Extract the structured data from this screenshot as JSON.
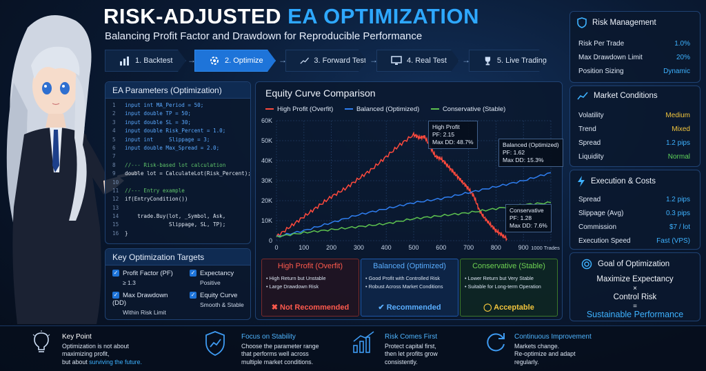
{
  "header": {
    "title_part1": "RISK-ADJUSTED",
    "title_part2": "EA OPTIMIZATION",
    "subtitle": "Balancing Profit Factor and Drawdown for Reproducible Performance"
  },
  "steps": [
    {
      "label": "1. Backtest",
      "icon": "bar-chart-icon"
    },
    {
      "label": "2. Optimize",
      "icon": "gear-icon"
    },
    {
      "label": "3. Forward Test",
      "icon": "trend-line-icon"
    },
    {
      "label": "4. Real Test",
      "icon": "monitor-icon"
    },
    {
      "label": "5. Live Trading",
      "icon": "trophy-icon"
    }
  ],
  "params": {
    "title": "EA Parameters (Optimization)",
    "lines": [
      {
        "n": "1",
        "t": "input int MA_Period = 50;",
        "c": "kw"
      },
      {
        "n": "2",
        "t": "input double TP = 50;",
        "c": "kw"
      },
      {
        "n": "3",
        "t": "input double SL = 30;",
        "c": "kw"
      },
      {
        "n": "4",
        "t": "input double Risk_Percent = 1.0;",
        "c": "kw"
      },
      {
        "n": "5",
        "t": "input int     Slippage = 3;",
        "c": "kw"
      },
      {
        "n": "6",
        "t": "input double Max_Spread = 2.0;",
        "c": "kw"
      },
      {
        "n": "7",
        "t": "",
        "c": "tx"
      },
      {
        "n": "8",
        "t": "//--- Risk-based lot calculation",
        "c": "cm"
      },
      {
        "n": "9",
        "t": "double lot = CalculateLot(Risk_Percent);",
        "c": "tx"
      },
      {
        "n": "10",
        "t": "",
        "c": "tx"
      },
      {
        "n": "11",
        "t": "//--- Entry example",
        "c": "cm"
      },
      {
        "n": "12",
        "t": "if(EntryCondition())",
        "c": "tx"
      },
      {
        "n": "13",
        "t": "",
        "c": "tx"
      },
      {
        "n": "14",
        "t": "    trade.Buy(lot, _Symbol, Ask,",
        "c": "tx"
      },
      {
        "n": "15",
        "t": "              Slippage, SL, TP);",
        "c": "tx"
      },
      {
        "n": "16",
        "t": "}",
        "c": "tx"
      }
    ]
  },
  "targets": {
    "title": "Key Optimization Targets",
    "items": [
      {
        "label": "Profit Factor (PF)",
        "sub": "≥ 1.3"
      },
      {
        "label": "Expectancy",
        "sub": "Positive"
      },
      {
        "label": "Max Drawdown (DD)",
        "sub": "Within Risk Limit"
      },
      {
        "label": "Equity Curve",
        "sub": "Smooth & Stable"
      }
    ]
  },
  "chart_data": {
    "type": "line",
    "title": "Equity Curve Comparison",
    "xlabel": "Trades",
    "ylabel": "",
    "xlim": [
      0,
      1000
    ],
    "ylim": [
      0,
      60000
    ],
    "grid": true,
    "legend_position": "top",
    "x_ticks": [
      "0",
      "100",
      "200",
      "300",
      "400",
      "500",
      "600",
      "700",
      "800",
      "900",
      "1000 Trades"
    ],
    "y_ticks": [
      "0",
      "10K",
      "20K",
      "30K",
      "40K",
      "50K",
      "60K"
    ],
    "series": [
      {
        "name": "High Profit (Overfit)",
        "color": "#ff4a3d",
        "x": [
          0,
          50,
          100,
          150,
          200,
          250,
          300,
          350,
          400,
          450,
          500,
          520,
          540,
          560,
          580,
          600,
          620,
          640,
          660,
          680,
          700,
          720,
          740,
          760,
          780,
          800,
          820,
          840
        ],
        "y": [
          2000,
          7000,
          12000,
          17000,
          22000,
          26000,
          31000,
          36000,
          42000,
          48000,
          53000,
          51500,
          52000,
          47000,
          42000,
          41000,
          38000,
          35000,
          32000,
          29000,
          26000,
          22000,
          15000,
          11000,
          8000,
          5000,
          3000,
          1000
        ]
      },
      {
        "name": "Balanced (Optimized)",
        "color": "#2f7ff2",
        "x": [
          0,
          100,
          200,
          300,
          400,
          500,
          600,
          700,
          800,
          900,
          1000
        ],
        "y": [
          2000,
          5000,
          9000,
          13000,
          16000,
          19000,
          21000,
          24000,
          27000,
          30000,
          34000
        ]
      },
      {
        "name": "Conservative (Stable)",
        "color": "#5dc24f",
        "x": [
          0,
          100,
          200,
          300,
          400,
          500,
          600,
          700,
          800,
          900,
          1000
        ],
        "y": [
          2000,
          4000,
          5500,
          7000,
          8500,
          11000,
          12500,
          14000,
          16000,
          18000,
          19000
        ]
      }
    ],
    "annotations": [
      {
        "lines": [
          "High Profit",
          "PF: 2.15",
          "Max DD: 48.7%"
        ],
        "color": "#ff4a3d"
      },
      {
        "lines": [
          "Balanced (Optimized)",
          "PF: 1.62",
          "Max DD: 15.3%"
        ],
        "color": "#4a97ff"
      },
      {
        "lines": [
          "Conservative",
          "PF: 1.28",
          "Max DD: 7.6%"
        ],
        "color": "#6fd45c"
      }
    ]
  },
  "comparison": [
    {
      "title": "High Profit (Overfit)",
      "color": "#ff4a3d",
      "bullets": [
        "High Return but Unstable",
        "Large Drawdown Risk"
      ],
      "verdict": "✖ Not Recommended"
    },
    {
      "title": "Balanced (Optimized)",
      "color": "#4aa3ff",
      "bullets": [
        "Good Profit with Controlled Risk",
        "Robust Across Market Conditions"
      ],
      "verdict": "✔ Recommended"
    },
    {
      "title": "Conservative (Stable)",
      "color": "#67d14f",
      "bullets": [
        "Lower Return but Very Stable",
        "Suitable for Long-term Operation"
      ],
      "verdict": "◯ Acceptable"
    }
  ],
  "risk": {
    "title": "Risk Management",
    "rows": [
      {
        "k": "Risk Per Trade",
        "v": "1.0%"
      },
      {
        "k": "Max Drawdown Limit",
        "v": "20%"
      },
      {
        "k": "Position Sizing",
        "v": "Dynamic"
      }
    ]
  },
  "market": {
    "title": "Market Conditions",
    "rows": [
      {
        "k": "Volatility",
        "v": "Medium",
        "c": "#f2c53d"
      },
      {
        "k": "Trend",
        "v": "Mixed",
        "c": "#f2c53d"
      },
      {
        "k": "Spread",
        "v": "1.2 pips",
        "c": "#3eb2ff"
      },
      {
        "k": "Liquidity",
        "v": "Normal",
        "c": "#5fd45a"
      }
    ]
  },
  "execution": {
    "title": "Execution & Costs",
    "rows": [
      {
        "k": "Spread",
        "v": "1.2 pips"
      },
      {
        "k": "Slippage (Avg)",
        "v": "0.3 pips"
      },
      {
        "k": "Commission",
        "v": "$7 / lot"
      },
      {
        "k": "Execution Speed",
        "v": "Fast (VPS)"
      }
    ]
  },
  "goal": {
    "title": "Goal of Optimization",
    "l1": "Maximize Expectancy",
    "l2": "×",
    "l3": "Control Risk",
    "l4": "=",
    "l5": "Sustainable Performance"
  },
  "bottom": [
    {
      "title": "Key Point",
      "text": "Optimization is not about\nmaximizing profit,\nbut about",
      "highlight": "surviving the future.",
      "icon": "lightbulb-icon"
    },
    {
      "title": "Focus on Stability",
      "text": "Choose the parameter range\nthat performs well across\nmultiple market conditions.",
      "icon": "shield-chart-icon"
    },
    {
      "title": "Risk Comes First",
      "text": "Protect capital first,\nthen let profits grow\nconsistently.",
      "icon": "growth-chart-icon"
    },
    {
      "title": "Continuous Improvement",
      "text": "Markets change.\nRe-optimize and adapt\nregularly.",
      "icon": "refresh-icon"
    }
  ]
}
